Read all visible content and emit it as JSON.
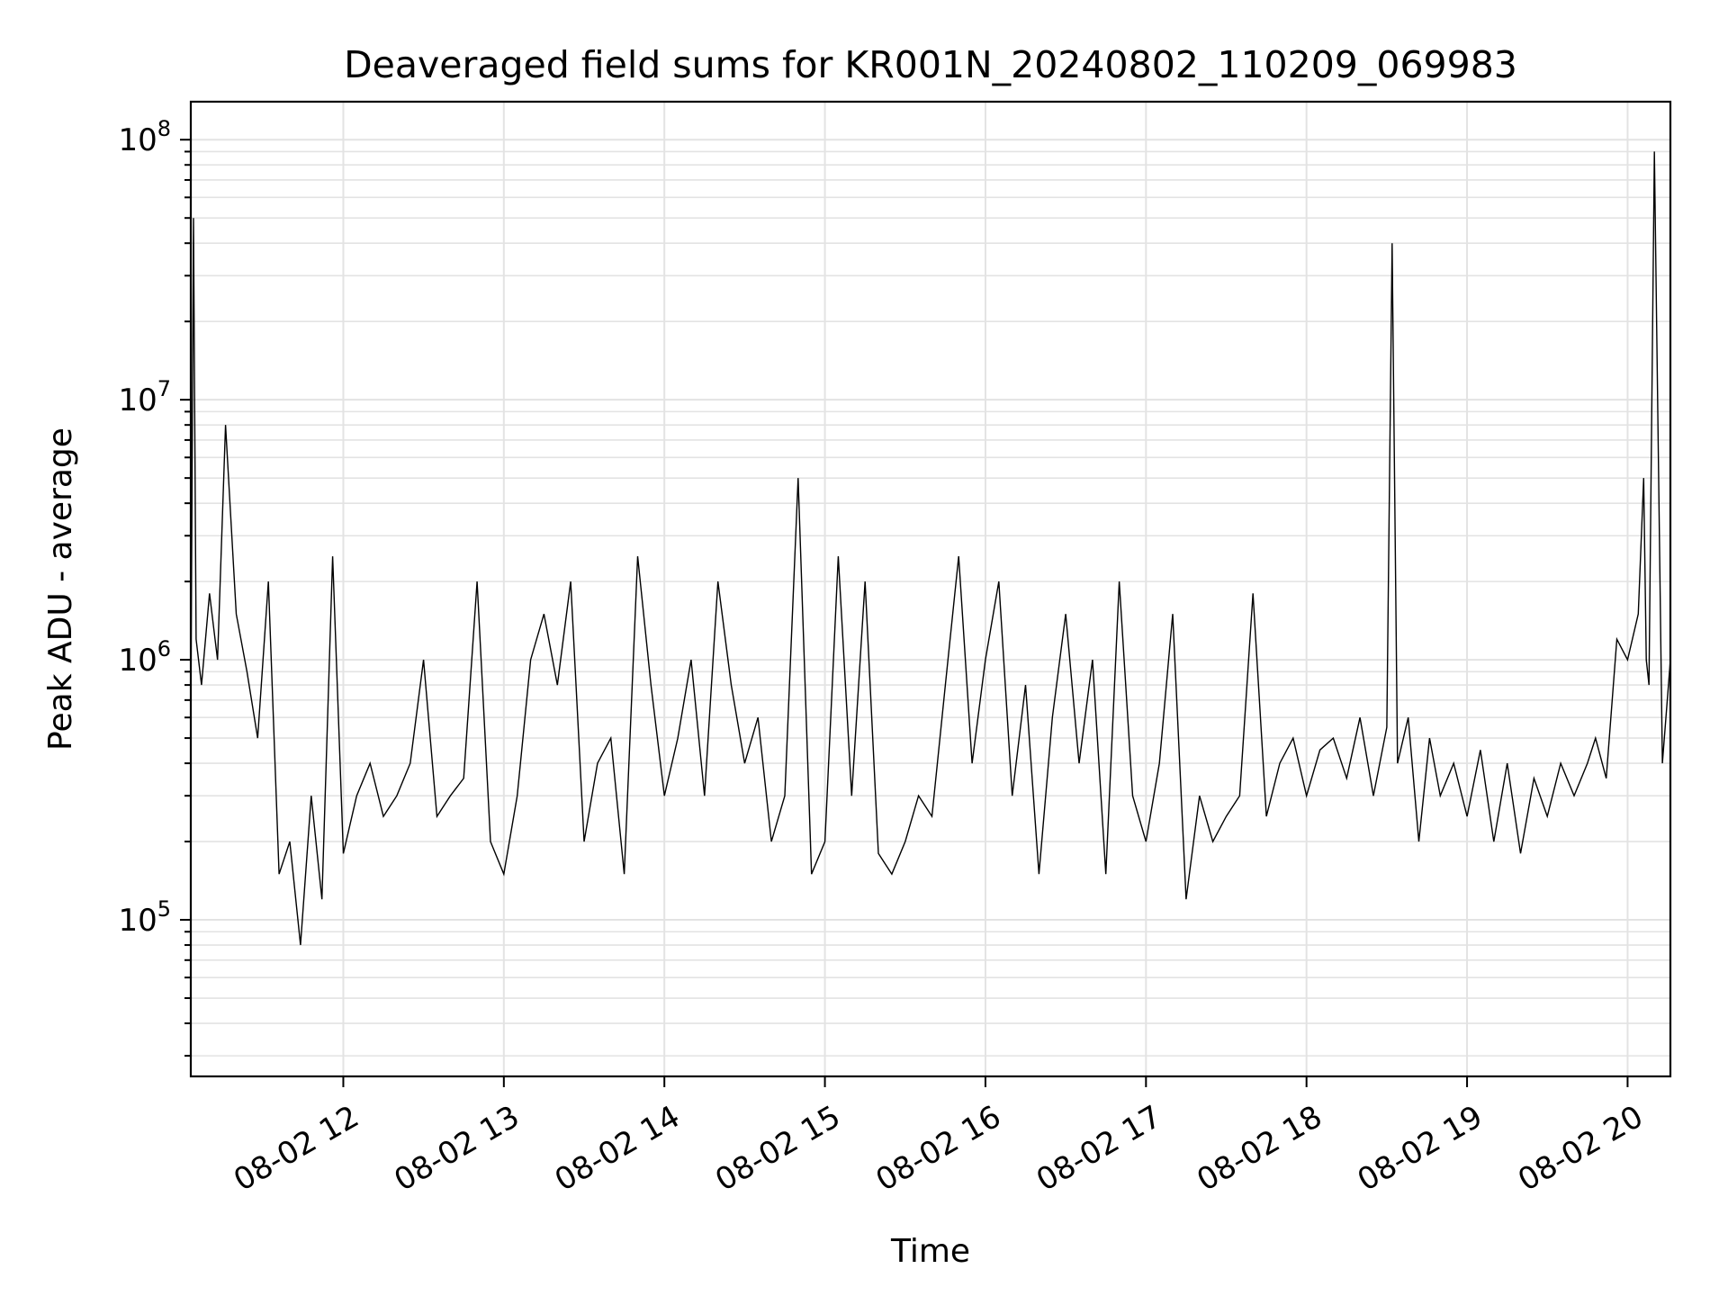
{
  "chart_data": {
    "type": "line",
    "title": "Deaveraged field sums for KR001N_20240802_110209_069983",
    "xlabel": "Time",
    "ylabel": "Peak ADU - average",
    "yscale": "log",
    "grid": true,
    "legend": "none",
    "xlim": [
      "08-02 11:03",
      "08-02 20:16"
    ],
    "ylim": [
      25000,
      140000000
    ],
    "x_ticks": [
      {
        "value": "08-02 12:00",
        "label": "08-02 12"
      },
      {
        "value": "08-02 13:00",
        "label": "08-02 13"
      },
      {
        "value": "08-02 14:00",
        "label": "08-02 14"
      },
      {
        "value": "08-02 15:00",
        "label": "08-02 15"
      },
      {
        "value": "08-02 16:00",
        "label": "08-02 16"
      },
      {
        "value": "08-02 17:00",
        "label": "08-02 17"
      },
      {
        "value": "08-02 18:00",
        "label": "08-02 18"
      },
      {
        "value": "08-02 19:00",
        "label": "08-02 19"
      },
      {
        "value": "08-02 20:00",
        "label": "08-02 20"
      }
    ],
    "y_ticks": [
      {
        "value": 100000,
        "base": "10",
        "exp": "5"
      },
      {
        "value": 1000000,
        "base": "10",
        "exp": "6"
      },
      {
        "value": 10000000,
        "base": "10",
        "exp": "7"
      },
      {
        "value": 100000000,
        "base": "10",
        "exp": "8"
      }
    ],
    "series": [
      {
        "color": "#000000",
        "x": [
          "08-02 11:03",
          "08-02 11:04",
          "08-02 11:05",
          "08-02 11:07",
          "08-02 11:10",
          "08-02 11:13",
          "08-02 11:16",
          "08-02 11:20",
          "08-02 11:24",
          "08-02 11:28",
          "08-02 11:32",
          "08-02 11:36",
          "08-02 11:40",
          "08-02 11:44",
          "08-02 11:48",
          "08-02 11:52",
          "08-02 11:56",
          "08-02 12:00",
          "08-02 12:05",
          "08-02 12:10",
          "08-02 12:15",
          "08-02 12:20",
          "08-02 12:25",
          "08-02 12:30",
          "08-02 12:35",
          "08-02 12:40",
          "08-02 12:45",
          "08-02 12:50",
          "08-02 12:55",
          "08-02 13:00",
          "08-02 13:05",
          "08-02 13:10",
          "08-02 13:15",
          "08-02 13:20",
          "08-02 13:25",
          "08-02 13:30",
          "08-02 13:35",
          "08-02 13:40",
          "08-02 13:45",
          "08-02 13:50",
          "08-02 13:55",
          "08-02 14:00",
          "08-02 14:05",
          "08-02 14:10",
          "08-02 14:15",
          "08-02 14:20",
          "08-02 14:25",
          "08-02 14:30",
          "08-02 14:35",
          "08-02 14:40",
          "08-02 14:45",
          "08-02 14:50",
          "08-02 14:55",
          "08-02 15:00",
          "08-02 15:05",
          "08-02 15:10",
          "08-02 15:15",
          "08-02 15:20",
          "08-02 15:25",
          "08-02 15:30",
          "08-02 15:35",
          "08-02 15:40",
          "08-02 15:45",
          "08-02 15:50",
          "08-02 15:55",
          "08-02 16:00",
          "08-02 16:05",
          "08-02 16:10",
          "08-02 16:15",
          "08-02 16:20",
          "08-02 16:25",
          "08-02 16:30",
          "08-02 16:35",
          "08-02 16:40",
          "08-02 16:45",
          "08-02 16:50",
          "08-02 16:55",
          "08-02 17:00",
          "08-02 17:05",
          "08-02 17:10",
          "08-02 17:15",
          "08-02 17:20",
          "08-02 17:25",
          "08-02 17:30",
          "08-02 17:35",
          "08-02 17:40",
          "08-02 17:45",
          "08-02 17:50",
          "08-02 17:55",
          "08-02 18:00",
          "08-02 18:05",
          "08-02 18:10",
          "08-02 18:15",
          "08-02 18:20",
          "08-02 18:25",
          "08-02 18:30",
          "08-02 18:32",
          "08-02 18:34",
          "08-02 18:38",
          "08-02 18:42",
          "08-02 18:46",
          "08-02 18:50",
          "08-02 18:55",
          "08-02 19:00",
          "08-02 19:05",
          "08-02 19:10",
          "08-02 19:15",
          "08-02 19:20",
          "08-02 19:25",
          "08-02 19:30",
          "08-02 19:35",
          "08-02 19:40",
          "08-02 19:45",
          "08-02 19:48",
          "08-02 19:52",
          "08-02 19:56",
          "08-02 20:00",
          "08-02 20:04",
          "08-02 20:06",
          "08-02 20:07",
          "08-02 20:08",
          "08-02 20:10",
          "08-02 20:13",
          "08-02 20:16"
        ],
        "y": [
          600000,
          50000000,
          1200000,
          800000,
          1800000,
          1000000,
          8000000,
          1500000,
          900000,
          500000,
          2000000,
          150000,
          200000,
          80000,
          300000,
          120000,
          2500000,
          180000,
          300000,
          400000,
          250000,
          300000,
          400000,
          1000000,
          250000,
          300000,
          350000,
          2000000,
          200000,
          150000,
          300000,
          1000000,
          1500000,
          800000,
          2000000,
          200000,
          400000,
          500000,
          150000,
          2500000,
          800000,
          300000,
          500000,
          1000000,
          300000,
          2000000,
          800000,
          400000,
          600000,
          200000,
          300000,
          5000000,
          150000,
          200000,
          2500000,
          300000,
          2000000,
          180000,
          150000,
          200000,
          300000,
          250000,
          800000,
          2500000,
          400000,
          1000000,
          2000000,
          300000,
          800000,
          150000,
          600000,
          1500000,
          400000,
          1000000,
          150000,
          2000000,
          300000,
          200000,
          400000,
          1500000,
          120000,
          300000,
          200000,
          250000,
          300000,
          1800000,
          250000,
          400000,
          500000,
          300000,
          450000,
          500000,
          350000,
          600000,
          300000,
          550000,
          40000000,
          400000,
          600000,
          200000,
          500000,
          300000,
          400000,
          250000,
          450000,
          200000,
          400000,
          180000,
          350000,
          250000,
          400000,
          300000,
          400000,
          500000,
          350000,
          1200000,
          1000000,
          1500000,
          5000000,
          1000000,
          800000,
          90000000,
          400000,
          1000000
        ]
      }
    ],
    "annotations": []
  }
}
